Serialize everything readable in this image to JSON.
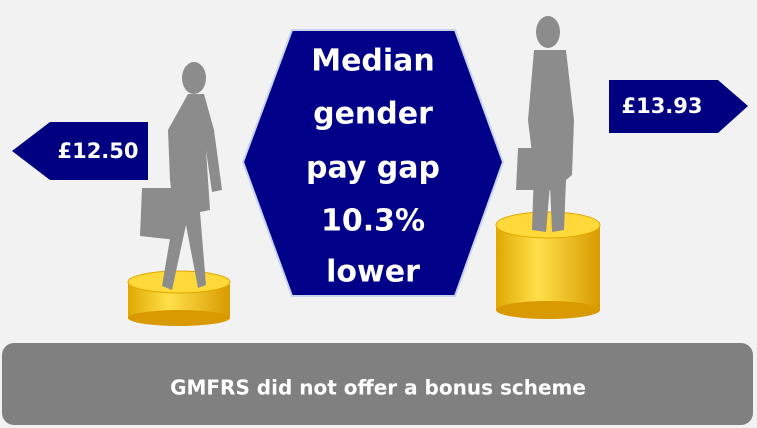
{
  "hexagon": {
    "lines": [
      "Median",
      "gender",
      "pay gap",
      "10.3%",
      "lower"
    ]
  },
  "left_label": "£12.50",
  "right_label": "£13.93",
  "footer": "GMFRS did not offer a bonus scheme"
}
